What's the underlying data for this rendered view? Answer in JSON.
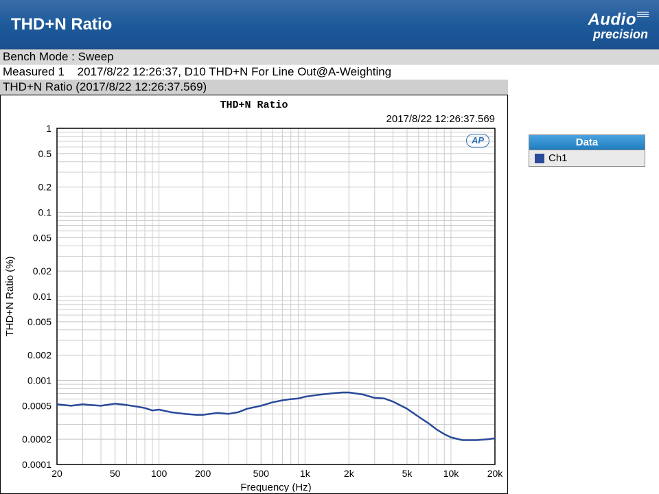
{
  "header": {
    "title": "THD+N Ratio",
    "brand_line1": "Audio",
    "brand_line2": "precision"
  },
  "info": {
    "bench_mode": "Bench Mode : Sweep",
    "measured": "Measured 1    2017/8/22 12:26:37, D10 THD+N For Line Out@A-Weighting",
    "chart_header": "THD+N Ratio (2017/8/22 12:26:37.569)"
  },
  "legend": {
    "header": "Data",
    "items": [
      {
        "label": "Ch1",
        "color": "#2a4a9a"
      }
    ]
  },
  "chart": {
    "type": "line",
    "title": "THD+N Ratio",
    "timestamp": "2017/8/22 12:26:37.569",
    "ap_badge": "AP",
    "plot_background": "#ffffff",
    "grid_color": "#cccccc",
    "axis_color": "#000000",
    "line_color": "#2a4a9a",
    "line_width": 2.5,
    "font_family": "Arial",
    "title_font": "Courier New",
    "title_fontsize": 15,
    "tick_fontsize": 14,
    "label_fontsize": 15,
    "xaxis": {
      "label": "Frequency (Hz)",
      "scale": "log",
      "min": 20,
      "max": 20000,
      "ticks": [
        20,
        50,
        100,
        200,
        500,
        1000,
        2000,
        5000,
        10000,
        20000
      ],
      "tick_labels": [
        "20",
        "50",
        "100",
        "200",
        "500",
        "1k",
        "2k",
        "5k",
        "10k",
        "20k"
      ]
    },
    "yaxis": {
      "label": "THD+N Ratio (%)",
      "scale": "log",
      "min": 0.0001,
      "max": 1,
      "ticks": [
        0.0001,
        0.0002,
        0.0005,
        0.001,
        0.002,
        0.005,
        0.01,
        0.02,
        0.05,
        0.1,
        0.2,
        0.5,
        1
      ],
      "tick_labels": [
        "0.0001",
        "0.0002",
        "0.0005",
        "0.001",
        "0.002",
        "0.005",
        "0.01",
        "0.02",
        "0.05",
        "0.1",
        "0.2",
        "0.5",
        "1"
      ]
    },
    "series": [
      {
        "name": "Ch1",
        "color": "#2a4a9a",
        "data": [
          [
            20,
            0.00052
          ],
          [
            25,
            0.0005
          ],
          [
            30,
            0.00052
          ],
          [
            40,
            0.0005
          ],
          [
            50,
            0.00053
          ],
          [
            60,
            0.00051
          ],
          [
            70,
            0.00049
          ],
          [
            80,
            0.00047
          ],
          [
            90,
            0.00044
          ],
          [
            100,
            0.00045
          ],
          [
            120,
            0.00042
          ],
          [
            150,
            0.0004
          ],
          [
            180,
            0.00039
          ],
          [
            200,
            0.00039
          ],
          [
            250,
            0.00041
          ],
          [
            300,
            0.0004
          ],
          [
            350,
            0.00042
          ],
          [
            400,
            0.00046
          ],
          [
            500,
            0.0005
          ],
          [
            600,
            0.00055
          ],
          [
            700,
            0.00058
          ],
          [
            800,
            0.0006
          ],
          [
            900,
            0.00061
          ],
          [
            1000,
            0.00064
          ],
          [
            1200,
            0.00067
          ],
          [
            1500,
            0.0007
          ],
          [
            1800,
            0.00072
          ],
          [
            2000,
            0.00072
          ],
          [
            2500,
            0.00068
          ],
          [
            3000,
            0.00062
          ],
          [
            3500,
            0.00061
          ],
          [
            4000,
            0.00056
          ],
          [
            5000,
            0.00046
          ],
          [
            6000,
            0.00037
          ],
          [
            7000,
            0.00031
          ],
          [
            8000,
            0.00026
          ],
          [
            9000,
            0.00023
          ],
          [
            10000,
            0.00021
          ],
          [
            12000,
            0.000195
          ],
          [
            15000,
            0.000195
          ],
          [
            18000,
            0.0002
          ],
          [
            20000,
            0.000205
          ]
        ]
      }
    ]
  }
}
